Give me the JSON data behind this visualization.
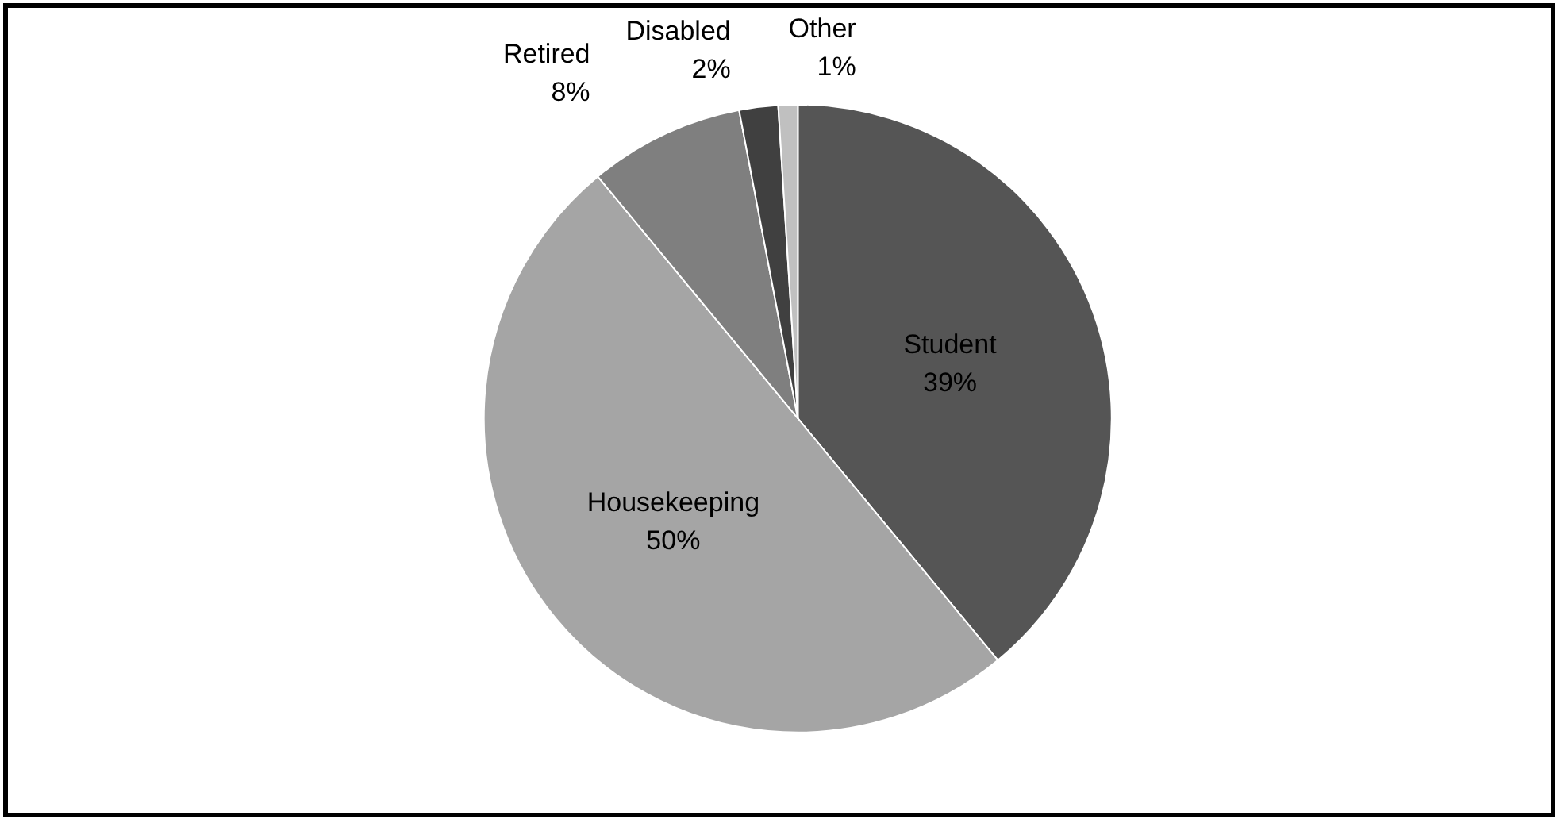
{
  "chart_data": {
    "type": "pie",
    "categories": [
      "Student",
      "Housekeeping",
      "Retired",
      "Disabled",
      "Other"
    ],
    "values": [
      39,
      50,
      8,
      2,
      1
    ],
    "colors": [
      "#555555",
      "#a5a5a5",
      "#7f7f7f",
      "#404040",
      "#c0c0c0"
    ],
    "value_labels": [
      "39%",
      "50%",
      "8%",
      "2%",
      "1%"
    ],
    "legend": false
  }
}
